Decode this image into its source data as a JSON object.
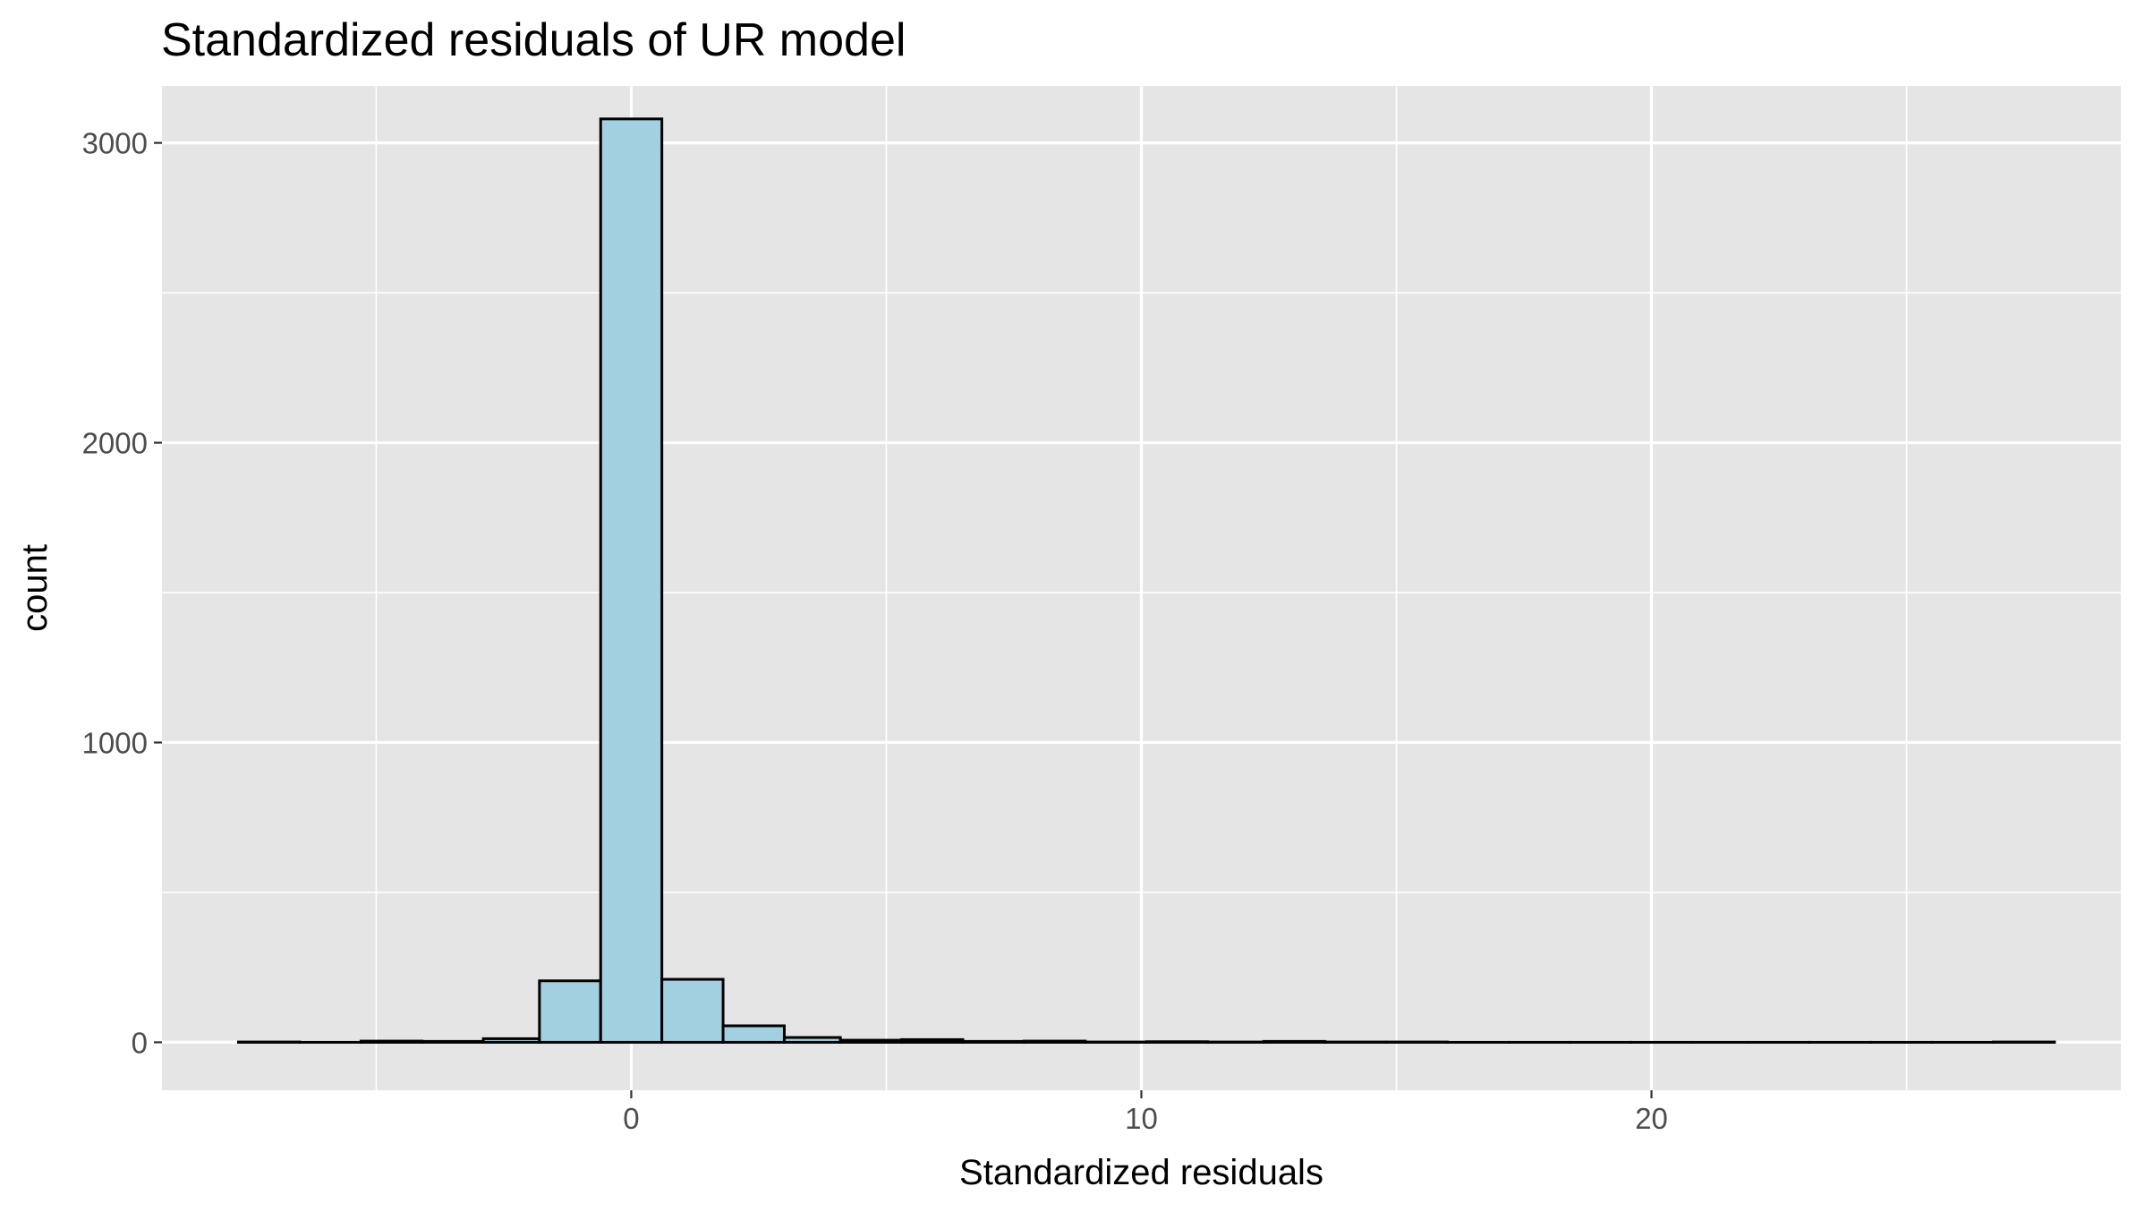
{
  "chart_data": {
    "type": "bar",
    "title": "Standardized residuals of UR model",
    "xlabel": "Standardized residuals",
    "ylabel": "count",
    "xlim": [
      -9.2,
      29.2
    ],
    "ylim": [
      -160,
      3190
    ],
    "x_ticks": [
      0,
      10,
      20
    ],
    "x_minor_ticks": [
      -5,
      5,
      15,
      25
    ],
    "y_ticks": [
      0,
      1000,
      2000,
      3000
    ],
    "y_minor_ticks": [
      500,
      1500,
      2500
    ],
    "x_tick_labels": [
      "0",
      "10",
      "20"
    ],
    "y_tick_labels": [
      "0",
      "1000",
      "2000",
      "3000"
    ],
    "grid": true,
    "panel_background": "#e5e5e5",
    "gridline_color": "#ffffff",
    "bar_fill": "#a2d0e1",
    "bar_outline": "#000000",
    "bins": [
      {
        "x_start": -7.7,
        "x_end": -6.5,
        "count": 1
      },
      {
        "x_start": -6.5,
        "x_end": -5.3,
        "count": 0
      },
      {
        "x_start": -5.3,
        "x_end": -4.1,
        "count": 4
      },
      {
        "x_start": -4.1,
        "x_end": -2.9,
        "count": 3
      },
      {
        "x_start": -2.9,
        "x_end": -1.8,
        "count": 12
      },
      {
        "x_start": -1.8,
        "x_end": -0.6,
        "count": 205
      },
      {
        "x_start": -0.6,
        "x_end": 0.6,
        "count": 3080
      },
      {
        "x_start": 0.6,
        "x_end": 1.8,
        "count": 210
      },
      {
        "x_start": 1.8,
        "x_end": 3.0,
        "count": 55
      },
      {
        "x_start": 3.0,
        "x_end": 4.1,
        "count": 16
      },
      {
        "x_start": 4.1,
        "x_end": 5.3,
        "count": 7
      },
      {
        "x_start": 5.3,
        "x_end": 6.5,
        "count": 9
      },
      {
        "x_start": 6.5,
        "x_end": 7.7,
        "count": 3
      },
      {
        "x_start": 7.7,
        "x_end": 8.9,
        "count": 4
      },
      {
        "x_start": 8.9,
        "x_end": 10.1,
        "count": 1
      },
      {
        "x_start": 10.1,
        "x_end": 11.3,
        "count": 2
      },
      {
        "x_start": 11.3,
        "x_end": 12.4,
        "count": 1
      },
      {
        "x_start": 12.4,
        "x_end": 13.6,
        "count": 3
      },
      {
        "x_start": 13.6,
        "x_end": 14.8,
        "count": 1
      },
      {
        "x_start": 14.8,
        "x_end": 16.0,
        "count": 1
      },
      {
        "x_start": 16.0,
        "x_end": 17.2,
        "count": 0
      },
      {
        "x_start": 17.2,
        "x_end": 18.4,
        "count": 0
      },
      {
        "x_start": 18.4,
        "x_end": 19.6,
        "count": 0
      },
      {
        "x_start": 19.6,
        "x_end": 20.8,
        "count": 0
      },
      {
        "x_start": 20.8,
        "x_end": 21.9,
        "count": 0
      },
      {
        "x_start": 21.9,
        "x_end": 23.1,
        "count": 0
      },
      {
        "x_start": 23.1,
        "x_end": 24.3,
        "count": 0
      },
      {
        "x_start": 24.3,
        "x_end": 25.5,
        "count": 0
      },
      {
        "x_start": 25.5,
        "x_end": 26.7,
        "count": 0
      },
      {
        "x_start": 26.7,
        "x_end": 27.9,
        "count": 1
      }
    ]
  }
}
